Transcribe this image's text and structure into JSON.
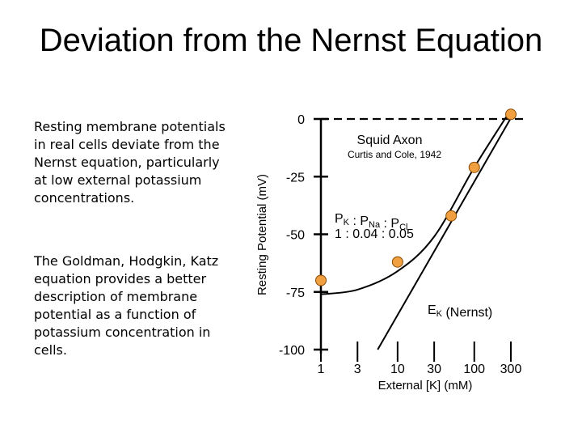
{
  "slide": {
    "title": "Deviation from the Nernst Equation",
    "paragraph_1": "Resting membrane potentials in real cells deviate from the Nernst equation, particularly at low external potassium concentrations.",
    "paragraph_2": "The Goldman, Hodgkin, Katz equation provides a better description of membrane potential as a function of potassium concentration in cells."
  },
  "colors": {
    "marker_fill": "#f0a040",
    "marker_stroke": "#8a4a00",
    "line": "#000000"
  },
  "chart_data": {
    "type": "line",
    "title": "Squid Axon",
    "subtitle": "Curtis and Cole, 1942",
    "xlabel": "External [K] (mM)",
    "ylabel": "Resting Potential (mV)",
    "x_scale": "log",
    "xlim": [
      1,
      300
    ],
    "ylim": [
      -100,
      0
    ],
    "xticks": [
      1,
      3,
      10,
      30,
      100,
      300
    ],
    "xtick_labels": [
      "1",
      "3",
      "10",
      "30",
      "100",
      "300"
    ],
    "yticks": [
      0,
      -25,
      -50,
      -75,
      -100
    ],
    "ytick_labels": [
      "0",
      "-25",
      "-50",
      "-75",
      "-100"
    ],
    "series": [
      {
        "name": "",
        "kind": "points",
        "points": [
          {
            "x": 1.0,
            "y": -70
          },
          {
            "x": 10,
            "y": -62
          },
          {
            "x": 50,
            "y": -42
          },
          {
            "x": 100,
            "y": -21
          },
          {
            "x": 300,
            "y": 2
          }
        ]
      },
      {
        "name": "",
        "kind": "smooth-curve",
        "points": [
          {
            "x": 1.0,
            "y": -76
          },
          {
            "x": 3,
            "y": -74
          },
          {
            "x": 10,
            "y": -66
          },
          {
            "x": 30,
            "y": -51
          },
          {
            "x": 100,
            "y": -21
          },
          {
            "x": 300,
            "y": 4
          }
        ]
      },
      {
        "name": "Eₖ (Nernst)",
        "kind": "line",
        "points": [
          {
            "x": 5.5,
            "y": -100
          },
          {
            "x": 320,
            "y": 2
          }
        ]
      },
      {
        "name": "",
        "kind": "dashed-reference",
        "points": [
          {
            "x": 1,
            "y": 0
          },
          {
            "x": 300,
            "y": 0
          }
        ]
      }
    ],
    "annotations": {
      "ratio_label": "Pₖ : Pₙₐ : Pᴄₗ",
      "ratio_label_parts": [
        {
          "text": "P",
          "sub": "K"
        },
        {
          "text": " : P",
          "sub": "Na"
        },
        {
          "text": " : P",
          "sub": "Cl"
        }
      ],
      "ratio_values": "1 : 0.04 : 0.05",
      "nernst_parts": [
        {
          "text": "E",
          "sub": "K"
        },
        {
          "text": " (Nernst)",
          "sub": ""
        }
      ]
    }
  }
}
